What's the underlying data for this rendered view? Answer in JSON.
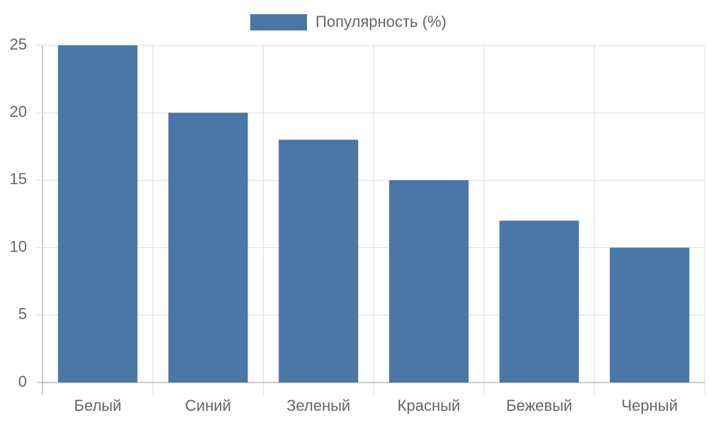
{
  "chart_data": {
    "type": "bar",
    "categories": [
      "Белый",
      "Синий",
      "Зеленый",
      "Красный",
      "Бежевый",
      "Черный"
    ],
    "series": [
      {
        "name": "Популярность (%)",
        "color": "#4a76a8",
        "values": [
          25,
          20,
          18,
          15,
          12,
          10
        ]
      }
    ],
    "ylim": [
      0,
      25
    ],
    "yticks": [
      0,
      5,
      10,
      15,
      20,
      25
    ],
    "grid": true,
    "legend": "top"
  }
}
